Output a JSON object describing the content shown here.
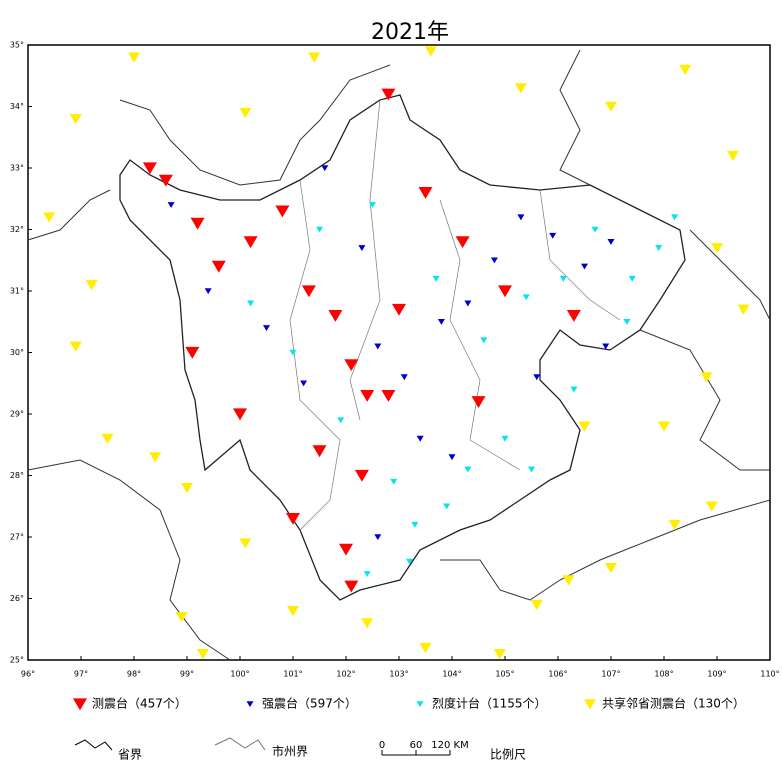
{
  "chart_data": {
    "type": "scatter",
    "title": "2021年",
    "xlim": [
      96,
      110
    ],
    "ylim": [
      25,
      35
    ],
    "xticks": [
      {
        "value": 96,
        "label": "96°"
      },
      {
        "value": 97,
        "label": "97°"
      },
      {
        "value": 98,
        "label": "98°"
      },
      {
        "value": 99,
        "label": "99°"
      },
      {
        "value": 100,
        "label": "100°"
      },
      {
        "value": 101,
        "label": "101°"
      },
      {
        "value": 102,
        "label": "102°"
      },
      {
        "value": 103,
        "label": "103°"
      },
      {
        "value": 104,
        "label": "104°"
      },
      {
        "value": 105,
        "label": "105°"
      },
      {
        "value": 106,
        "label": "106°"
      },
      {
        "value": 107,
        "label": "107°"
      },
      {
        "value": 108,
        "label": "108°"
      },
      {
        "value": 109,
        "label": "109°"
      },
      {
        "value": 110,
        "label": "110°"
      }
    ],
    "yticks": [
      {
        "value": 25,
        "label": "25°"
      },
      {
        "value": 26,
        "label": "26°"
      },
      {
        "value": 27,
        "label": "27°"
      },
      {
        "value": 28,
        "label": "28°"
      },
      {
        "value": 29,
        "label": "29°"
      },
      {
        "value": 30,
        "label": "30°"
      },
      {
        "value": 31,
        "label": "31°"
      },
      {
        "value": 32,
        "label": "32°"
      },
      {
        "value": 33,
        "label": "33°"
      },
      {
        "value": 34,
        "label": "34°"
      },
      {
        "value": 35,
        "label": "35°"
      }
    ],
    "series": [
      {
        "name": "测震台（457个）",
        "color": "#ff0000",
        "size": 7,
        "x": [
          98.3,
          98.6,
          99.2,
          99.6,
          100.2,
          100.8,
          101.3,
          101.8,
          102.1,
          102.4,
          102.8,
          101.5,
          102.3,
          101.0,
          102.0,
          102.1,
          103.0,
          104.2,
          102.8,
          99.1,
          100.0,
          103.5,
          104.5,
          105.0,
          106.3
        ],
        "y": [
          33.0,
          32.8,
          32.1,
          31.4,
          31.8,
          32.3,
          31.0,
          30.6,
          29.8,
          29.3,
          29.3,
          28.4,
          28.0,
          27.3,
          26.8,
          26.2,
          30.7,
          31.8,
          34.2,
          30.0,
          29.0,
          32.6,
          29.2,
          31.0,
          30.6
        ]
      },
      {
        "name": "强震台（597个）",
        "color": "#0000cc",
        "size": 3.5,
        "x": [
          98.7,
          99.4,
          100.5,
          101.2,
          102.6,
          103.1,
          103.8,
          104.3,
          104.8,
          105.3,
          105.9,
          106.5,
          107.0,
          103.4,
          104.0,
          102.6,
          101.6,
          102.3,
          105.6,
          106.9
        ],
        "y": [
          32.4,
          31.0,
          30.4,
          29.5,
          30.1,
          29.6,
          30.5,
          30.8,
          31.5,
          32.2,
          31.9,
          31.4,
          31.8,
          28.6,
          28.3,
          27.0,
          33.0,
          31.7,
          29.6,
          30.1
        ]
      },
      {
        "name": "烈度计台（1155个）",
        "color": "#00e5ee",
        "size": 3.5,
        "x": [
          100.2,
          101.0,
          101.9,
          102.9,
          103.3,
          103.9,
          104.3,
          105.0,
          105.5,
          104.6,
          105.4,
          106.1,
          106.7,
          107.4,
          107.9,
          108.2,
          103.7,
          102.5,
          101.5,
          103.2,
          102.4,
          106.3,
          107.3
        ],
        "y": [
          30.8,
          30.0,
          28.9,
          27.9,
          27.2,
          27.5,
          28.1,
          28.6,
          28.1,
          30.2,
          30.9,
          31.2,
          32.0,
          31.2,
          31.7,
          32.2,
          31.2,
          32.4,
          32.0,
          26.6,
          26.4,
          29.4,
          30.5
        ]
      },
      {
        "name": "共享邻省测震台（130个）",
        "color": "#ffee00",
        "size": 6,
        "x": [
          96.4,
          96.9,
          97.2,
          96.9,
          97.5,
          98.4,
          99.0,
          98.9,
          99.3,
          100.1,
          101.0,
          102.4,
          103.5,
          104.9,
          105.6,
          106.2,
          107.0,
          108.2,
          108.0,
          108.8,
          109.5,
          109.0,
          109.3,
          108.4,
          107.0,
          105.3,
          103.6,
          101.4,
          100.1,
          98.0,
          106.5,
          108.9
        ],
        "y": [
          32.2,
          33.8,
          31.1,
          30.1,
          28.6,
          28.3,
          27.8,
          25.7,
          25.1,
          26.9,
          25.8,
          25.6,
          25.2,
          25.1,
          25.9,
          26.3,
          26.5,
          27.2,
          28.8,
          29.6,
          30.7,
          31.7,
          33.2,
          34.6,
          34.0,
          34.3,
          34.9,
          34.8,
          33.9,
          34.8,
          28.8,
          27.5
        ]
      }
    ],
    "map_legend": {
      "province_border": "省界",
      "city_border": "市州界",
      "scale_title": "比例尺",
      "scale_ticks": [
        0,
        60,
        {
          "value": 120,
          "label": "120 KM"
        }
      ]
    }
  }
}
